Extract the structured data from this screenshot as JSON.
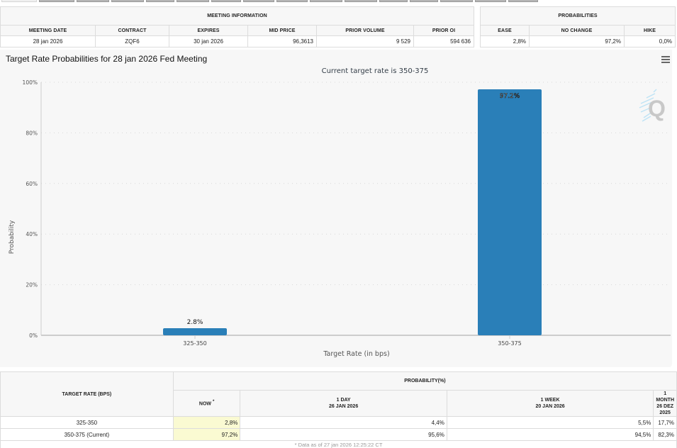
{
  "tabs": {
    "count": 16,
    "active_index": 0
  },
  "meeting_info": {
    "group_header": "MEETING INFORMATION",
    "columns": [
      "MEETING DATE",
      "CONTRACT",
      "EXPIRES",
      "MID PRICE",
      "PRIOR VOLUME",
      "PRIOR OI"
    ],
    "row": [
      "28 jan 2026",
      "ZQF6",
      "30 jan 2026",
      "96,3613",
      "9 529",
      "594 636"
    ]
  },
  "probabilities": {
    "group_header": "PROBABILITIES",
    "columns": [
      "EASE",
      "NO CHANGE",
      "HIKE"
    ],
    "row": [
      "2,8%",
      "97,2%",
      "0,0%"
    ]
  },
  "chart_panel": {
    "menu_icon": "hamburger-menu-icon",
    "watermark_icon": "quikstrike-q-logo-icon"
  },
  "chart_data": {
    "type": "bar",
    "title": "Target Rate Probabilities for 28 jan 2026 Fed Meeting",
    "subtitle": "Current target rate is 350-375",
    "xlabel": "Target Rate (in bps)",
    "ylabel": "Probability",
    "categories": [
      "325-350",
      "350-375"
    ],
    "values": [
      2.8,
      97.2
    ],
    "data_labels": [
      "2.8%",
      "97.2%"
    ],
    "ylim": [
      0,
      100
    ],
    "yticks": [
      0,
      20,
      40,
      60,
      80,
      100
    ],
    "ytick_labels": [
      "0%",
      "20%",
      "40%",
      "60%",
      "80%",
      "100%"
    ],
    "grid": true,
    "legend": "none",
    "bar_color": "#2a7fb8"
  },
  "rates_table": {
    "row_header": "TARGET RATE (BPS)",
    "group_header": "PROBABILITY(%)",
    "columns": [
      {
        "line1": "NOW",
        "line2": "",
        "marker": "*"
      },
      {
        "line1": "1 DAY",
        "line2": "26 JAN 2026"
      },
      {
        "line1": "1 WEEK",
        "line2": "20 JAN 2026"
      },
      {
        "line1": "1 MONTH",
        "line2": "26 DEZ 2025"
      }
    ],
    "rows": [
      {
        "rate": "325-350",
        "values": [
          "2,8%",
          "4,4%",
          "5,5%",
          "17,7%"
        ]
      },
      {
        "rate": "350-375 (Current)",
        "values": [
          "97,2%",
          "95,6%",
          "94,5%",
          "82,3%"
        ]
      }
    ],
    "footnote": "* Data as of 27 jan 2026 12:25:22 CT"
  }
}
